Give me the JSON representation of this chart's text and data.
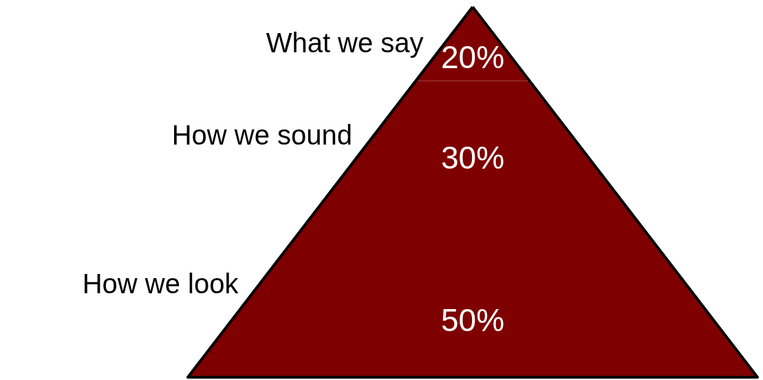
{
  "chart_data": {
    "type": "other",
    "categories": [
      "What we say",
      "How we sound",
      "How we look"
    ],
    "values": [
      20,
      30,
      50
    ],
    "value_labels": [
      "20%",
      "30%",
      "50%"
    ],
    "colors": [
      "#7f0000",
      "#7f0000",
      "#7f0000"
    ]
  }
}
